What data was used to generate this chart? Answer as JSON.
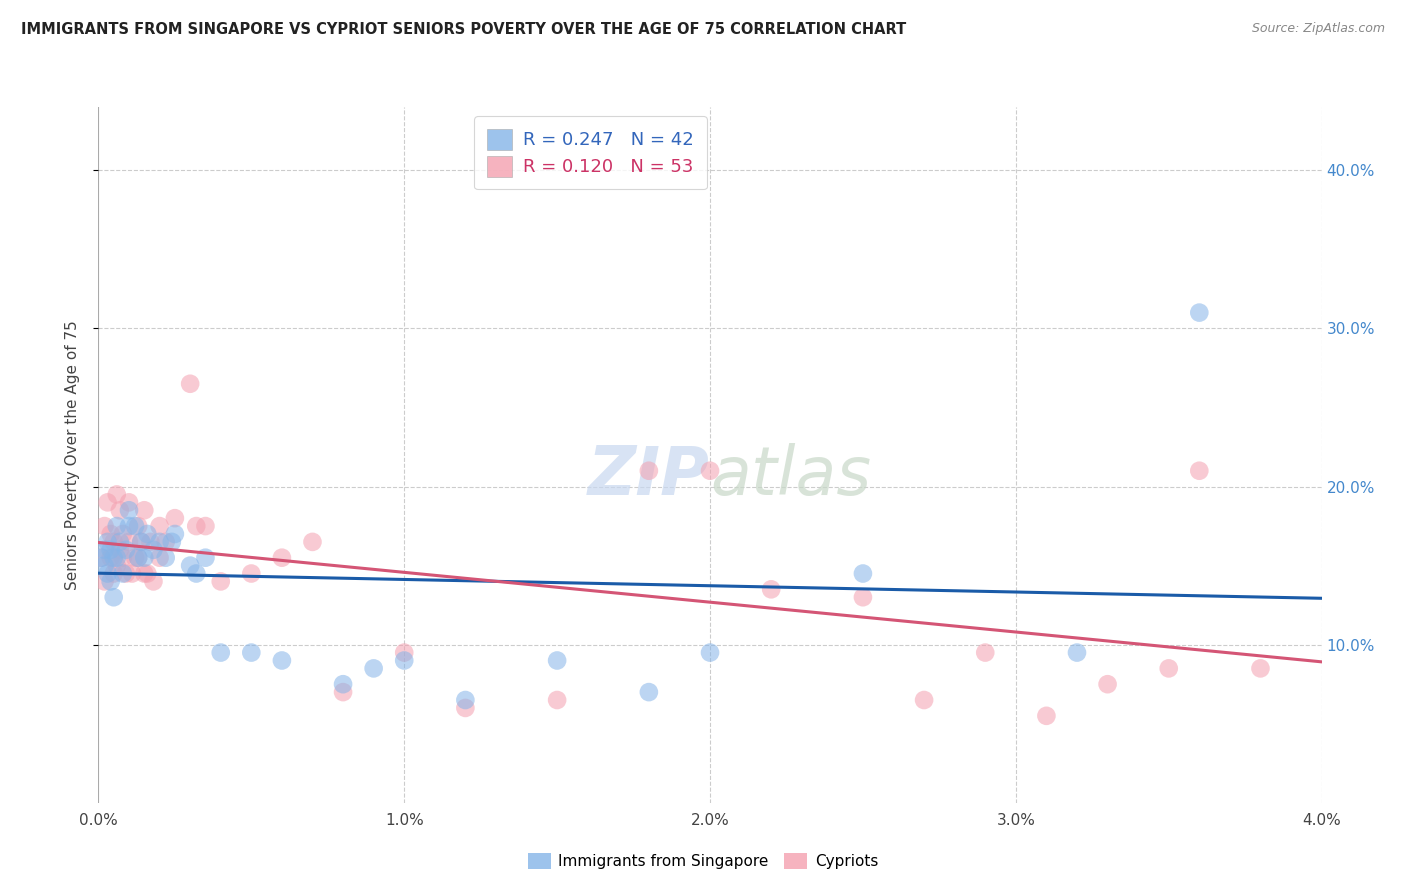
{
  "title": "IMMIGRANTS FROM SINGAPORE VS CYPRIOT SENIORS POVERTY OVER THE AGE OF 75 CORRELATION CHART",
  "source": "Source: ZipAtlas.com",
  "ylabel": "Seniors Poverty Over the Age of 75",
  "xlim": [
    0.0,
    0.04
  ],
  "ylim": [
    0.0,
    0.44
  ],
  "legend_label1": "Immigrants from Singapore",
  "legend_label2": "Cypriots",
  "R1": "0.247",
  "N1": "42",
  "R2": "0.120",
  "N2": "53",
  "color_blue": "#85B4E8",
  "color_pink": "#F4A0B0",
  "line_blue": "#1A5BA8",
  "line_pink": "#D45575",
  "singapore_x": [
    0.0001,
    0.0002,
    0.0002,
    0.0003,
    0.0003,
    0.0004,
    0.0004,
    0.0005,
    0.0005,
    0.0006,
    0.0006,
    0.0007,
    0.0008,
    0.0009,
    0.001,
    0.001,
    0.0012,
    0.0013,
    0.0014,
    0.0015,
    0.0016,
    0.0018,
    0.002,
    0.0022,
    0.0024,
    0.0025,
    0.003,
    0.0032,
    0.0035,
    0.004,
    0.005,
    0.006,
    0.008,
    0.009,
    0.01,
    0.012,
    0.015,
    0.018,
    0.02,
    0.025,
    0.032,
    0.036
  ],
  "singapore_y": [
    0.155,
    0.15,
    0.16,
    0.145,
    0.165,
    0.14,
    0.16,
    0.13,
    0.155,
    0.175,
    0.155,
    0.165,
    0.145,
    0.16,
    0.175,
    0.185,
    0.175,
    0.155,
    0.165,
    0.155,
    0.17,
    0.16,
    0.165,
    0.155,
    0.165,
    0.17,
    0.15,
    0.145,
    0.155,
    0.095,
    0.095,
    0.09,
    0.075,
    0.085,
    0.09,
    0.065,
    0.09,
    0.07,
    0.095,
    0.145,
    0.095,
    0.31
  ],
  "cypriot_x": [
    0.0001,
    0.0002,
    0.0002,
    0.0003,
    0.0004,
    0.0004,
    0.0005,
    0.0005,
    0.0006,
    0.0006,
    0.0007,
    0.0007,
    0.0008,
    0.0008,
    0.0009,
    0.001,
    0.001,
    0.0011,
    0.0012,
    0.0013,
    0.0013,
    0.0014,
    0.0015,
    0.0015,
    0.0016,
    0.0017,
    0.0018,
    0.002,
    0.002,
    0.0022,
    0.0025,
    0.003,
    0.0032,
    0.0035,
    0.004,
    0.005,
    0.006,
    0.007,
    0.008,
    0.01,
    0.012,
    0.015,
    0.018,
    0.02,
    0.022,
    0.025,
    0.027,
    0.029,
    0.031,
    0.033,
    0.035,
    0.036,
    0.038
  ],
  "cypriot_y": [
    0.155,
    0.14,
    0.175,
    0.19,
    0.155,
    0.17,
    0.145,
    0.165,
    0.15,
    0.195,
    0.16,
    0.185,
    0.155,
    0.17,
    0.145,
    0.165,
    0.19,
    0.145,
    0.155,
    0.155,
    0.175,
    0.165,
    0.145,
    0.185,
    0.145,
    0.165,
    0.14,
    0.155,
    0.175,
    0.165,
    0.18,
    0.265,
    0.175,
    0.175,
    0.14,
    0.145,
    0.155,
    0.165,
    0.07,
    0.095,
    0.06,
    0.065,
    0.21,
    0.21,
    0.135,
    0.13,
    0.065,
    0.095,
    0.055,
    0.075,
    0.085,
    0.21,
    0.085
  ]
}
